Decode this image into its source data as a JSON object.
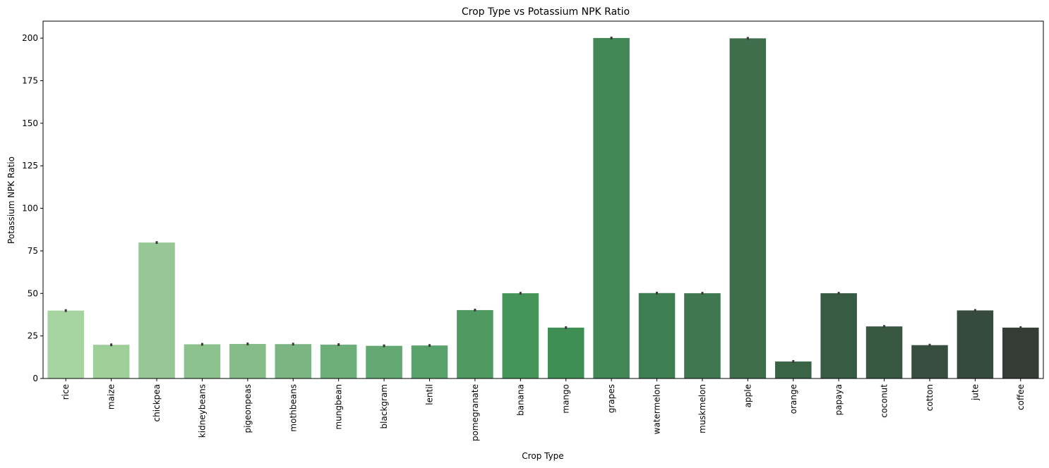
{
  "chart_data": {
    "type": "bar",
    "title": "Crop Type vs Potassium NPK Ratio",
    "xlabel": "Crop Type",
    "ylabel": "Potassium NPK Ratio",
    "ylim": [
      0,
      210
    ],
    "yticks": [
      0,
      25,
      50,
      75,
      100,
      125,
      150,
      175,
      200
    ],
    "grid": false,
    "error_bar_color": "#3a3a3a",
    "categories": [
      "rice",
      "maize",
      "chickpea",
      "kidneybeans",
      "pigeonpeas",
      "mothbeans",
      "mungbean",
      "blackgram",
      "lentil",
      "pomegranate",
      "banana",
      "mango",
      "grapes",
      "watermelon",
      "muskmelon",
      "apple",
      "orange",
      "papaya",
      "coconut",
      "cotton",
      "jute",
      "coffee"
    ],
    "values": [
      39.9,
      19.8,
      79.9,
      20.1,
      20.3,
      20.2,
      19.9,
      19.2,
      19.4,
      40.2,
      50.1,
      29.9,
      200.1,
      50.2,
      50.1,
      199.9,
      10.0,
      50.1,
      30.6,
      19.6,
      40.0,
      29.9
    ],
    "errors": [
      0.8,
      0.8,
      0.8,
      0.8,
      0.8,
      0.8,
      0.8,
      0.8,
      0.8,
      0.8,
      0.8,
      0.8,
      0.8,
      0.8,
      0.8,
      0.8,
      0.8,
      0.8,
      0.8,
      0.8,
      0.8,
      0.8
    ],
    "colors": [
      "#a6d4a0",
      "#9ecf98",
      "#98c796",
      "#8cc18d",
      "#84bb87",
      "#7bb682",
      "#6eae79",
      "#63a872",
      "#5aa26b",
      "#4f9a61",
      "#469558",
      "#3f8e54",
      "#418856",
      "#3d7f50",
      "#3e7750",
      "#3e6e4c",
      "#396446",
      "#375c43",
      "#385842",
      "#374e3f",
      "#374a3e",
      "#353b37"
    ]
  }
}
